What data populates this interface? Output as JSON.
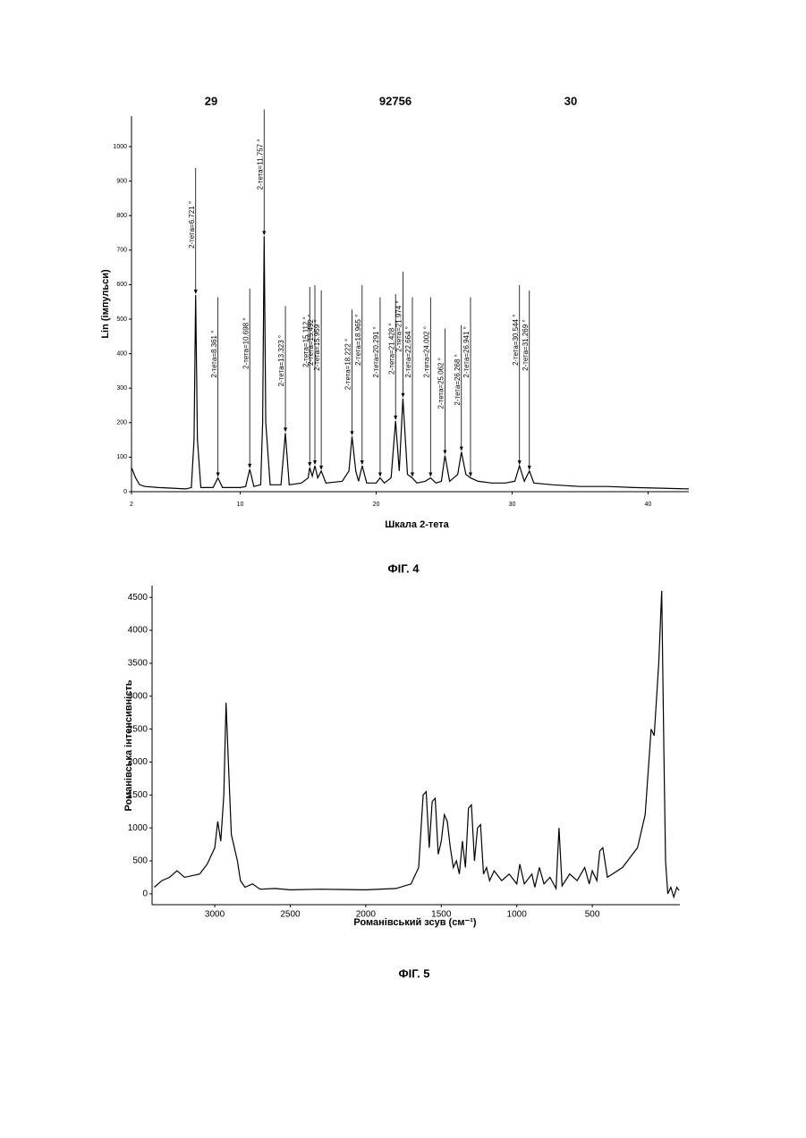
{
  "header": {
    "left": "29",
    "center": "92756",
    "right": "30"
  },
  "chart_data": [
    {
      "type": "line",
      "caption": "ФІГ. 4",
      "x_label": "Шкала 2-тета",
      "y_label": "Lin (імпульси)",
      "xlim": [
        2,
        43
      ],
      "xticks": [
        2,
        10,
        20,
        30,
        40
      ],
      "ylim": [
        0,
        1088
      ],
      "yticks": [
        0,
        100,
        200,
        300,
        400,
        500,
        600,
        700,
        800,
        900,
        1000
      ],
      "color": "#000",
      "x": [
        2.0,
        2.3,
        2.6,
        3,
        4,
        5,
        6,
        6.4,
        6.6,
        6.72,
        6.85,
        7.1,
        8.0,
        8.36,
        8.7,
        10.0,
        10.4,
        10.7,
        11.0,
        11.5,
        11.65,
        11.76,
        11.88,
        12.2,
        13.0,
        13.32,
        13.6,
        14.5,
        15.0,
        15.11,
        15.3,
        15.49,
        15.7,
        15.96,
        16.3,
        17.5,
        18.0,
        18.22,
        18.5,
        18.7,
        18.97,
        19.3,
        20.0,
        20.29,
        20.6,
        21.1,
        21.43,
        21.7,
        21.97,
        22.3,
        22.66,
        23.0,
        23.6,
        24.0,
        24.4,
        24.8,
        25.06,
        25.4,
        26.0,
        26.27,
        26.6,
        26.94,
        27.5,
        28.5,
        29.5,
        30.2,
        30.54,
        30.9,
        31.27,
        31.6,
        33,
        35,
        37,
        39,
        41,
        43
      ],
      "values": [
        70,
        40,
        20,
        15,
        12,
        10,
        8,
        12,
        150,
        570,
        150,
        12,
        12,
        40,
        12,
        12,
        15,
        65,
        15,
        20,
        200,
        740,
        200,
        20,
        20,
        170,
        20,
        25,
        40,
        70,
        45,
        75,
        40,
        60,
        25,
        30,
        60,
        160,
        60,
        30,
        75,
        25,
        25,
        40,
        25,
        40,
        205,
        60,
        270,
        50,
        40,
        25,
        30,
        40,
        25,
        30,
        105,
        30,
        50,
        115,
        50,
        40,
        30,
        25,
        25,
        30,
        75,
        30,
        60,
        25,
        20,
        15,
        15,
        12,
        10,
        8
      ],
      "annotations": [
        {
          "text": "2-тета=6.721 °",
          "x": 6.721,
          "y": 570
        },
        {
          "text": "2-тета=8.361 °",
          "x": 8.361,
          "y": 40
        },
        {
          "text": "2-тета=10.698 °",
          "x": 10.698,
          "y": 65
        },
        {
          "text": "2-тета=11.757 °",
          "x": 11.757,
          "y": 740
        },
        {
          "text": "2-тета=13.323 °",
          "x": 13.323,
          "y": 170
        },
        {
          "text": "2-тета=15.112 °",
          "x": 15.112,
          "y": 70
        },
        {
          "text": "2-тета=15.492 °",
          "x": 15.492,
          "y": 75
        },
        {
          "text": "2-тета=15.959 °",
          "x": 15.959,
          "y": 60
        },
        {
          "text": "2-тета=18.222 °",
          "x": 18.222,
          "y": 160
        },
        {
          "text": "2-тета=18.965 °",
          "x": 18.965,
          "y": 75
        },
        {
          "text": "2-тета=20.291 °",
          "x": 20.291,
          "y": 40
        },
        {
          "text": "2-тета=21.428 °",
          "x": 21.428,
          "y": 205
        },
        {
          "text": "2-тета=21.974 °",
          "x": 21.974,
          "y": 270
        },
        {
          "text": "2-тета=22.664 °",
          "x": 22.664,
          "y": 40
        },
        {
          "text": "2-тета=24.002 °",
          "x": 24.002,
          "y": 40
        },
        {
          "text": "2-тета=25.062 °",
          "x": 25.062,
          "y": 105
        },
        {
          "text": "2-тета=26.268 °",
          "x": 26.268,
          "y": 115
        },
        {
          "text": "2-тета=26.941 °",
          "x": 26.941,
          "y": 40
        },
        {
          "text": "2-тета=30.544 °",
          "x": 30.544,
          "y": 75
        },
        {
          "text": "2-тета=31.269 °",
          "x": 31.269,
          "y": 60
        }
      ]
    },
    {
      "type": "line",
      "caption": "ФІГ. 5",
      "x_label": "Романівський зсув (см⁻¹)",
      "y_label": "Романівська інтенсивність",
      "xlim": [
        3415,
        -80
      ],
      "xticks": [
        3000,
        2500,
        2000,
        1500,
        1000,
        500
      ],
      "ylim": [
        -165,
        4680
      ],
      "yticks": [
        0,
        500,
        1000,
        1500,
        2000,
        2500,
        3000,
        3500,
        4000,
        4500
      ],
      "color": "#000",
      "x": [
        3400,
        3350,
        3300,
        3250,
        3200,
        3100,
        3050,
        3000,
        2980,
        2960,
        2940,
        2925,
        2910,
        2890,
        2870,
        2850,
        2830,
        2800,
        2750,
        2700,
        2600,
        2500,
        2300,
        2000,
        1800,
        1700,
        1650,
        1620,
        1600,
        1580,
        1560,
        1540,
        1520,
        1500,
        1480,
        1460,
        1440,
        1420,
        1400,
        1380,
        1360,
        1340,
        1320,
        1300,
        1280,
        1260,
        1240,
        1220,
        1200,
        1180,
        1150,
        1100,
        1050,
        1000,
        980,
        950,
        900,
        880,
        850,
        820,
        780,
        740,
        720,
        700,
        650,
        600,
        550,
        520,
        500,
        470,
        450,
        430,
        400,
        300,
        200,
        150,
        110,
        90,
        60,
        40,
        25,
        15,
        0,
        -20,
        -40,
        -60,
        -75
      ],
      "values": [
        100,
        200,
        250,
        350,
        250,
        300,
        450,
        700,
        1100,
        800,
        1500,
        2900,
        2000,
        900,
        700,
        500,
        200,
        100,
        150,
        70,
        80,
        60,
        70,
        60,
        80,
        150,
        400,
        1500,
        1550,
        700,
        1400,
        1450,
        600,
        800,
        1200,
        1100,
        700,
        400,
        500,
        300,
        800,
        400,
        1300,
        1350,
        500,
        1000,
        1050,
        300,
        400,
        200,
        350,
        200,
        300,
        150,
        450,
        150,
        300,
        100,
        400,
        150,
        250,
        80,
        1000,
        120,
        300,
        200,
        400,
        150,
        350,
        200,
        650,
        700,
        250,
        400,
        700,
        1200,
        2500,
        2400,
        3500,
        4600,
        2000,
        500,
        0,
        100,
        -50,
        100,
        50
      ]
    }
  ]
}
